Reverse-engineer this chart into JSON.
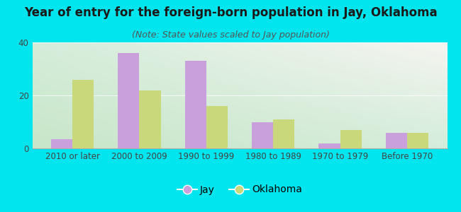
{
  "title": "Year of entry for the foreign-born population in Jay, Oklahoma",
  "subtitle": "(Note: State values scaled to Jay population)",
  "categories": [
    "2010 or later",
    "2000 to 2009",
    "1990 to 1999",
    "1980 to 1989",
    "1970 to 1979",
    "Before 1970"
  ],
  "jay_values": [
    3.5,
    36,
    33,
    10,
    2,
    6
  ],
  "oklahoma_values": [
    26,
    22,
    16,
    11,
    7,
    6
  ],
  "jay_color": "#c9a0dc",
  "oklahoma_color": "#c8d87a",
  "background_outer": "#00e5ee",
  "background_inner_topleft": "#d4edda",
  "background_inner_topright": "#f0f0e8",
  "background_inner_bottom": "#c8e6c9",
  "ylim": [
    0,
    40
  ],
  "yticks": [
    0,
    20,
    40
  ],
  "bar_width": 0.32,
  "title_fontsize": 12,
  "subtitle_fontsize": 9,
  "tick_fontsize": 8.5,
  "legend_fontsize": 10
}
